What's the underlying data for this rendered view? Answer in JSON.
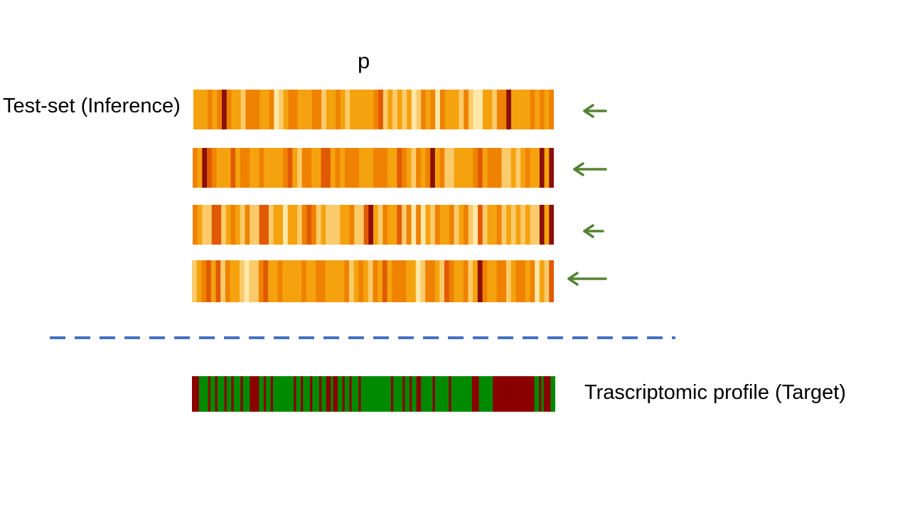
{
  "labels": {
    "p": "p",
    "test_set": "Test-set (Inference)",
    "target": "Trascriptomic profile (Target)"
  },
  "colors": {
    "heat_pale": "#ffe8a8",
    "heat_light": "#fbcb6b",
    "heat_orange": "#f5a20f",
    "heat_deep": "#ef8200",
    "heat_red": "#e05a05",
    "heat_dark": "#8a0f05",
    "target_up": "#008a00",
    "target_down": "#8b0000",
    "arrow": "#548235",
    "divider": "#4472c4"
  },
  "strip_levels": [
    "2223235322133322301233222331223212222234121212013230322213100221335222232323",
    "3254322242332232222342133224423233322233322432132352311222234233311212322525",
    "3211441232131144122022134312111223114521322413030213223123104122312121211525",
    "1234241322101134223222232233222231232132423332201332143223125322331233230214"
  ],
  "target_profile": "0001111011011101101110111000011011011111111101101110111011001001101101110111111111111101111011011001111101111110111111111000111111000000000000000000110100011"
}
